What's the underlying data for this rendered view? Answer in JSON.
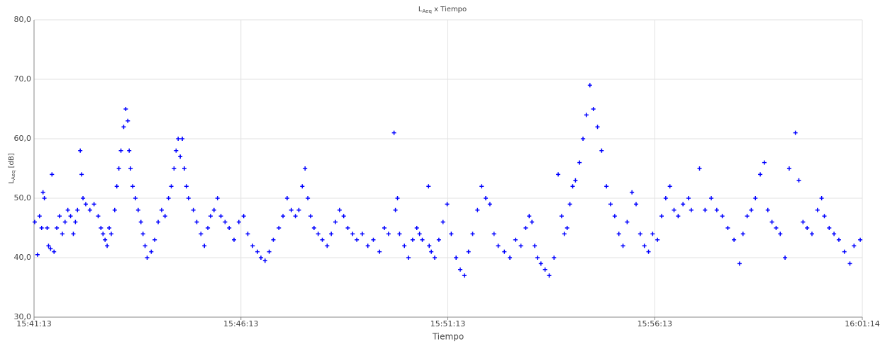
{
  "chart_data": {
    "type": "scatter",
    "title": {
      "main": "L",
      "sub": "Aeq",
      "rest": " x Tiempo"
    },
    "x_label": "Tiempo",
    "y_label": {
      "main": "L",
      "sub": "Aeq",
      "rest": " [dB]"
    },
    "xlim": [
      0,
      1201
    ],
    "xticks": [
      {
        "value": 0,
        "label": "15:41:13"
      },
      {
        "value": 300,
        "label": "15:46:13"
      },
      {
        "value": 600,
        "label": "15:51:13"
      },
      {
        "value": 900,
        "label": "15:56:13"
      },
      {
        "value": 1201,
        "label": "16:01:14"
      }
    ],
    "ylim": [
      30,
      80
    ],
    "yticks": [
      {
        "value": 30,
        "label": "30,0"
      },
      {
        "value": 40,
        "label": "40,0"
      },
      {
        "value": 50,
        "label": "50,0"
      },
      {
        "value": 60,
        "label": "60,0"
      },
      {
        "value": 70,
        "label": "70,0"
      },
      {
        "value": 80,
        "label": "80,0"
      }
    ],
    "grid": true,
    "color": "#0000ff",
    "x": [
      1,
      5,
      8,
      11,
      13,
      15,
      19,
      21,
      24,
      26,
      29,
      33,
      37,
      41,
      45,
      49,
      53,
      57,
      60,
      63,
      67,
      69,
      71,
      75,
      81,
      87,
      93,
      97,
      100,
      103,
      106,
      109,
      112,
      117,
      120,
      123,
      126,
      130,
      133,
      136,
      138,
      140,
      143,
      147,
      151,
      155,
      158,
      161,
      164,
      170,
      175,
      180,
      185,
      190,
      195,
      199,
      203,
      206,
      209,
      212,
      215,
      218,
      221,
      224,
      231,
      236,
      242,
      247,
      252,
      256,
      261,
      266,
      271,
      277,
      283,
      290,
      297,
      304,
      310,
      317,
      324,
      329,
      335,
      341,
      347,
      355,
      361,
      367,
      373,
      379,
      384,
      389,
      393,
      397,
      401,
      406,
      412,
      418,
      425,
      431,
      437,
      443,
      449,
      455,
      462,
      468,
      476,
      484,
      492,
      501,
      508,
      514,
      522,
      524,
      527,
      530,
      537,
      543,
      549,
      555,
      559,
      563,
      572,
      573,
      576,
      581,
      587,
      593,
      599,
      605,
      612,
      618,
      624,
      630,
      636,
      643,
      649,
      655,
      661,
      667,
      673,
      682,
      690,
      698,
      706,
      713,
      718,
      722,
      726,
      730,
      735,
      741,
      747,
      754,
      760,
      765,
      769,
      773,
      777,
      781,
      785,
      791,
      796,
      801,
      806,
      811,
      817,
      823,
      830,
      836,
      842,
      848,
      854,
      860,
      867,
      873,
      879,
      885,
      891,
      897,
      904,
      910,
      916,
      922,
      928,
      934,
      941,
      949,
      953,
      965,
      973,
      982,
      990,
      998,
      1006,
      1015,
      1023,
      1028,
      1034,
      1040,
      1046,
      1053,
      1059,
      1064,
      1070,
      1076,
      1082,
      1089,
      1095,
      1104,
      1109,
      1115,
      1121,
      1128,
      1136,
      1142,
      1146,
      1153,
      1160,
      1167,
      1175,
      1183,
      1189,
      1198
    ],
    "values": [
      46,
      40.5,
      47,
      45,
      51,
      50,
      45,
      42,
      41.5,
      54,
      41,
      45,
      47,
      44,
      46,
      48,
      47,
      44,
      46,
      48,
      58,
      54,
      50,
      49,
      48,
      49,
      47,
      45,
      44,
      43,
      42,
      45,
      44,
      48,
      52,
      55,
      58,
      62,
      65,
      63,
      58,
      55,
      52,
      50,
      48,
      46,
      44,
      42,
      40,
      41,
      43,
      46,
      48,
      47,
      50,
      52,
      55,
      58,
      60,
      57,
      60,
      55,
      52,
      50,
      48,
      46,
      44,
      42,
      45,
      47,
      48,
      50,
      47,
      46,
      45,
      43,
      46,
      47,
      44,
      42,
      41,
      40,
      39.5,
      41,
      43,
      45,
      47,
      50,
      48,
      47,
      48,
      52,
      55,
      50,
      47,
      45,
      44,
      43,
      42,
      44,
      46,
      48,
      47,
      45,
      44,
      43,
      44,
      42,
      43,
      41,
      45,
      44,
      61,
      48,
      50,
      44,
      42,
      40,
      43,
      45,
      44,
      43,
      52,
      42,
      41,
      40,
      43,
      46,
      49,
      44,
      40,
      38,
      37,
      41,
      44,
      48,
      52,
      50,
      49,
      44,
      42,
      41,
      40,
      43,
      42,
      45,
      47,
      46,
      42,
      40,
      39,
      38,
      37,
      40,
      54,
      47,
      44,
      45,
      49,
      52,
      53,
      56,
      60,
      64,
      69,
      65,
      62,
      58,
      52,
      49,
      47,
      44,
      42,
      46,
      51,
      49,
      44,
      42,
      41,
      44,
      43,
      47,
      50,
      52,
      48,
      47,
      49,
      50,
      48,
      55,
      48,
      50,
      48,
      47,
      45,
      43,
      39,
      44,
      47,
      48,
      50,
      54,
      56,
      48,
      46,
      45,
      44,
      40,
      55,
      61,
      53,
      46,
      45,
      44,
      48,
      50,
      47,
      45,
      44,
      43,
      41,
      39,
      42,
      43
    ]
  }
}
